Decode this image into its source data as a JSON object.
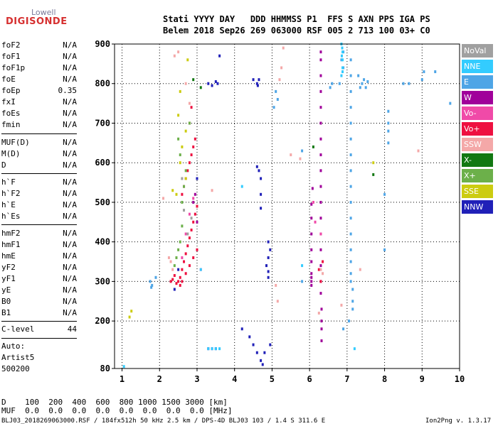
{
  "logo": {
    "line1": "Lowell",
    "line2": "DIGISONDE"
  },
  "header": {
    "line1": "Stati YYYY DAY   DDD HHMMSS P1  FFS S AXN PPS IGA PS",
    "line2": "Belem 2018 Sep26 269 063000 RSF 005 2 713 100 03+ C0"
  },
  "params": {
    "group1": [
      {
        "name": "foF2",
        "value": "N/A"
      },
      {
        "name": "foF1",
        "value": "N/A"
      },
      {
        "name": "foF1p",
        "value": "N/A"
      },
      {
        "name": "foE",
        "value": "N/A"
      },
      {
        "name": "foEp",
        "value": "0.35"
      },
      {
        "name": "fxI",
        "value": "N/A"
      },
      {
        "name": "foEs",
        "value": "N/A"
      },
      {
        "name": "fmin",
        "value": "N/A"
      }
    ],
    "group2": [
      {
        "name": "MUF(D)",
        "value": "N/A"
      },
      {
        "name": "M(D)",
        "value": "N/A"
      },
      {
        "name": "D",
        "value": "N/A"
      }
    ],
    "group3": [
      {
        "name": "h`F",
        "value": "N/A"
      },
      {
        "name": "h`F2",
        "value": "N/A"
      },
      {
        "name": "h`E",
        "value": "N/A"
      },
      {
        "name": "h`Es",
        "value": "N/A"
      }
    ],
    "group4": [
      {
        "name": "hmF2",
        "value": "N/A"
      },
      {
        "name": "hmF1",
        "value": "N/A"
      },
      {
        "name": "hmE",
        "value": "N/A"
      },
      {
        "name": "yF2",
        "value": "N/A"
      },
      {
        "name": "yF1",
        "value": "N/A"
      },
      {
        "name": "yE",
        "value": "N/A"
      },
      {
        "name": "B0",
        "value": "N/A"
      },
      {
        "name": "B1",
        "value": "N/A"
      }
    ],
    "clevel": {
      "name": "C-level",
      "value": "44"
    }
  },
  "auto": {
    "line1": "Auto:",
    "line2": "Artist5",
    "line3": "500200"
  },
  "footer": {
    "d_row": "D    100  200  400  600  800 1000 1500 3000 [km]",
    "muf_row": "MUF  0.0  0.0  0.0  0.0  0.0  0.0  0.0  0.0 [MHz]",
    "file_info": "BLJ03_2018269063000.RSF / 184fx512h 50 kHz 2.5 km / DPS-4D BLJ03 103 / 1.4 S 311.6 E",
    "version": "Ion2Png v. 1.3.17"
  },
  "legend": [
    {
      "label": "NoVal",
      "color": "#a0a0a0"
    },
    {
      "label": "NNE",
      "color": "#33ccff"
    },
    {
      "label": "E",
      "color": "#4ea5e6"
    },
    {
      "label": "W",
      "color": "#a0009a"
    },
    {
      "label": "Vo-",
      "color": "#f04aa8"
    },
    {
      "label": "Vo+",
      "color": "#ee1040"
    },
    {
      "label": "SSW",
      "color": "#f4a8a8"
    },
    {
      "label": "X-",
      "color": "#127812"
    },
    {
      "label": "X+",
      "color": "#6cb04a"
    },
    {
      "label": "SSE",
      "color": "#cccc10"
    },
    {
      "label": "NNW",
      "color": "#2020b8"
    }
  ],
  "chart_data": {
    "type": "scatter",
    "xlabel": "",
    "ylabel": "",
    "xlim": [
      0.8,
      10
    ],
    "ylim": [
      80,
      900
    ],
    "x_ticks": [
      1,
      2,
      3,
      4,
      5,
      6,
      7,
      8,
      9,
      10
    ],
    "y_ticks": [
      80,
      200,
      300,
      400,
      500,
      600,
      700,
      800,
      900
    ],
    "grid": "dotted vertical and horizontal",
    "series": [
      {
        "name": "W",
        "color": "#a0009a",
        "points": [
          [
            6.05,
            290
          ],
          [
            6.05,
            300
          ],
          [
            6.05,
            310
          ],
          [
            6.05,
            320
          ],
          [
            6.05,
            350
          ],
          [
            6.05,
            380
          ],
          [
            6.05,
            420
          ],
          [
            6.05,
            460
          ],
          [
            6.05,
            495
          ],
          [
            6.08,
            535
          ],
          [
            6.3,
            270
          ],
          [
            6.3,
            300
          ],
          [
            6.3,
            340
          ],
          [
            6.3,
            380
          ],
          [
            6.3,
            420
          ],
          [
            6.3,
            460
          ],
          [
            6.3,
            500
          ],
          [
            6.3,
            540
          ],
          [
            6.3,
            580
          ],
          [
            6.3,
            620
          ],
          [
            6.3,
            660
          ],
          [
            6.3,
            700
          ],
          [
            6.3,
            740
          ],
          [
            6.3,
            780
          ],
          [
            6.3,
            820
          ],
          [
            6.3,
            860
          ],
          [
            6.3,
            880
          ],
          [
            6.32,
            150
          ],
          [
            6.32,
            180
          ],
          [
            6.32,
            200
          ],
          [
            6.32,
            230
          ],
          [
            2.9,
            500
          ],
          [
            2.95,
            520
          ],
          [
            3.0,
            450
          ]
        ]
      },
      {
        "name": "Vo+",
        "color": "#ee1040",
        "points": [
          [
            2.5,
            300
          ],
          [
            2.55,
            310
          ],
          [
            2.6,
            330
          ],
          [
            2.65,
            350
          ],
          [
            2.7,
            370
          ],
          [
            2.75,
            390
          ],
          [
            2.8,
            410
          ],
          [
            2.85,
            430
          ],
          [
            2.9,
            450
          ],
          [
            2.95,
            470
          ],
          [
            3.0,
            490
          ],
          [
            2.6,
            520
          ],
          [
            2.65,
            540
          ],
          [
            2.7,
            560
          ],
          [
            2.75,
            580
          ],
          [
            2.8,
            600
          ],
          [
            2.85,
            620
          ],
          [
            2.9,
            640
          ],
          [
            2.95,
            660
          ],
          [
            2.8,
            700
          ],
          [
            2.85,
            740
          ],
          [
            2.6,
            300
          ],
          [
            2.7,
            320
          ],
          [
            2.8,
            340
          ],
          [
            2.9,
            360
          ],
          [
            3.0,
            380
          ],
          [
            2.55,
            290
          ],
          [
            2.45,
            295
          ],
          [
            2.35,
            305
          ],
          [
            2.3,
            300
          ],
          [
            2.4,
            315
          ],
          [
            6.25,
            330
          ],
          [
            6.35,
            350
          ],
          [
            6.3,
            300
          ]
        ]
      },
      {
        "name": "Vo-",
        "color": "#f04aa8",
        "points": [
          [
            2.6,
            360
          ],
          [
            2.7,
            420
          ],
          [
            2.8,
            470
          ],
          [
            2.9,
            510
          ],
          [
            6.1,
            500
          ],
          [
            6.15,
            450
          ],
          [
            6.3,
            420
          ],
          [
            3.1,
            330
          ]
        ]
      },
      {
        "name": "NNW",
        "color": "#2020b8",
        "points": [
          [
            3.3,
            800
          ],
          [
            3.4,
            795
          ],
          [
            3.5,
            805
          ],
          [
            3.55,
            800
          ],
          [
            3.6,
            870
          ],
          [
            4.5,
            810
          ],
          [
            4.6,
            800
          ],
          [
            4.62,
            795
          ],
          [
            4.65,
            810
          ],
          [
            4.6,
            590
          ],
          [
            4.65,
            580
          ],
          [
            4.7,
            560
          ],
          [
            4.7,
            520
          ],
          [
            4.7,
            485
          ],
          [
            4.9,
            400
          ],
          [
            4.95,
            380
          ],
          [
            4.9,
            360
          ],
          [
            4.85,
            340
          ],
          [
            4.9,
            325
          ],
          [
            4.9,
            310
          ],
          [
            4.2,
            180
          ],
          [
            4.4,
            160
          ],
          [
            4.5,
            140
          ],
          [
            4.6,
            120
          ],
          [
            4.7,
            100
          ],
          [
            4.8,
            120
          ],
          [
            4.95,
            140
          ],
          [
            4.75,
            90
          ],
          [
            3.3,
            130
          ],
          [
            3.4,
            130
          ],
          [
            3.5,
            130
          ],
          [
            2.4,
            280
          ],
          [
            2.5,
            330
          ],
          [
            3.0,
            560
          ]
        ]
      },
      {
        "name": "E",
        "color": "#4ea5e6",
        "points": [
          [
            7.1,
            300
          ],
          [
            7.1,
            320
          ],
          [
            7.1,
            350
          ],
          [
            7.1,
            380
          ],
          [
            7.1,
            420
          ],
          [
            7.1,
            460
          ],
          [
            7.1,
            500
          ],
          [
            7.1,
            540
          ],
          [
            7.1,
            580
          ],
          [
            7.1,
            620
          ],
          [
            7.1,
            660
          ],
          [
            7.1,
            700
          ],
          [
            7.1,
            740
          ],
          [
            7.1,
            780
          ],
          [
            7.1,
            820
          ],
          [
            7.1,
            860
          ],
          [
            7.15,
            280
          ],
          [
            7.15,
            250
          ],
          [
            7.15,
            230
          ],
          [
            6.9,
            880
          ],
          [
            6.85,
            860
          ],
          [
            6.9,
            840
          ],
          [
            6.8,
            800
          ],
          [
            6.6,
            800
          ],
          [
            6.55,
            790
          ],
          [
            7.4,
            800
          ],
          [
            7.45,
            810
          ],
          [
            7.5,
            790
          ],
          [
            7.55,
            805
          ],
          [
            7.3,
            820
          ],
          [
            7.35,
            790
          ],
          [
            8.1,
            730
          ],
          [
            8.1,
            700
          ],
          [
            8.1,
            680
          ],
          [
            8.1,
            650
          ],
          [
            8.0,
            520
          ],
          [
            8.0,
            380
          ],
          [
            8.5,
            800
          ],
          [
            8.65,
            800
          ],
          [
            9.05,
            830
          ],
          [
            9.0,
            810
          ],
          [
            9.35,
            830
          ],
          [
            9.75,
            750
          ],
          [
            1.75,
            300
          ],
          [
            1.78,
            285
          ],
          [
            1.8,
            290
          ],
          [
            1.9,
            310
          ],
          [
            5.1,
            780
          ],
          [
            5.15,
            760
          ],
          [
            5.05,
            740
          ],
          [
            5.8,
            300
          ],
          [
            5.8,
            630
          ],
          [
            7.05,
            200
          ],
          [
            6.9,
            180
          ]
        ]
      },
      {
        "name": "NNE",
        "color": "#33ccff",
        "points": [
          [
            6.85,
            900
          ],
          [
            6.87,
            890
          ],
          [
            6.88,
            880
          ],
          [
            6.86,
            870
          ],
          [
            6.88,
            860
          ],
          [
            6.88,
            840
          ],
          [
            6.88,
            830
          ],
          [
            6.85,
            820
          ],
          [
            3.3,
            130
          ],
          [
            3.4,
            130
          ],
          [
            3.5,
            130
          ],
          [
            3.6,
            130
          ],
          [
            3.1,
            330
          ],
          [
            1.05,
            85
          ],
          [
            7.2,
            130
          ],
          [
            4.2,
            540
          ],
          [
            5.8,
            340
          ]
        ]
      },
      {
        "name": "SSW",
        "color": "#f4a8a8",
        "points": [
          [
            2.4,
            870
          ],
          [
            2.5,
            880
          ],
          [
            2.7,
            800
          ],
          [
            2.8,
            750
          ],
          [
            2.3,
            350
          ],
          [
            2.35,
            330
          ],
          [
            2.25,
            360
          ],
          [
            5.3,
            890
          ],
          [
            5.25,
            840
          ],
          [
            5.2,
            810
          ],
          [
            5.1,
            290
          ],
          [
            5.15,
            250
          ],
          [
            5.5,
            620
          ],
          [
            6.25,
            220
          ],
          [
            6.3,
            330
          ],
          [
            6.35,
            320
          ],
          [
            7.35,
            330
          ],
          [
            6.85,
            240
          ],
          [
            8.9,
            630
          ],
          [
            5.75,
            610
          ],
          [
            3.4,
            530
          ],
          [
            2.1,
            510
          ]
        ]
      },
      {
        "name": "X-",
        "color": "#127812",
        "points": [
          [
            7.7,
            570
          ],
          [
            3.1,
            790
          ],
          [
            2.9,
            810
          ],
          [
            6.1,
            640
          ]
        ]
      },
      {
        "name": "X+",
        "color": "#6cb04a",
        "points": [
          [
            2.6,
            500
          ],
          [
            2.65,
            540
          ],
          [
            2.7,
            580
          ],
          [
            2.55,
            620
          ],
          [
            2.5,
            660
          ],
          [
            2.8,
            700
          ],
          [
            2.6,
            440
          ],
          [
            2.55,
            400
          ],
          [
            2.5,
            380
          ],
          [
            2.45,
            360
          ],
          [
            2.4,
            340
          ]
        ]
      },
      {
        "name": "SSE",
        "color": "#cccc10",
        "points": [
          [
            2.75,
            860
          ],
          [
            2.55,
            780
          ],
          [
            2.5,
            720
          ],
          [
            2.7,
            680
          ],
          [
            2.6,
            640
          ],
          [
            2.55,
            600
          ],
          [
            2.7,
            560
          ],
          [
            2.45,
            520
          ],
          [
            1.25,
            225
          ],
          [
            1.2,
            210
          ],
          [
            7.7,
            600
          ],
          [
            2.35,
            530
          ]
        ]
      },
      {
        "name": "NoVal",
        "color": "#a0a0a0",
        "points": [
          [
            2.85,
            460
          ],
          [
            2.75,
            420
          ],
          [
            2.65,
            480
          ],
          [
            2.6,
            560
          ]
        ]
      }
    ]
  }
}
